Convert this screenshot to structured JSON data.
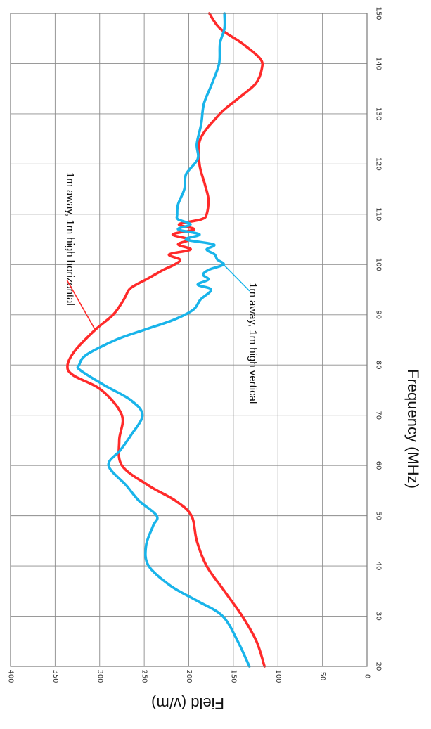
{
  "chart_data": {
    "type": "line",
    "xlabel": "Frequency (MHz)",
    "ylabel": "Field (v/m)",
    "xlim": [
      20,
      150
    ],
    "ylim": [
      0,
      400
    ],
    "x_ticks": [
      20,
      30,
      40,
      50,
      60,
      70,
      80,
      90,
      100,
      110,
      120,
      130,
      140,
      150
    ],
    "y_ticks": [
      0,
      50,
      100,
      150,
      200,
      250,
      300,
      350,
      400
    ],
    "grid": true,
    "rotation": "rotated 90 degrees clockwise",
    "series": [
      {
        "name": "1m away, 1m high horizontal",
        "color": "#ff2a2a",
        "points": [
          [
            20,
            115
          ],
          [
            25,
            124
          ],
          [
            30,
            140
          ],
          [
            35,
            160
          ],
          [
            40,
            180
          ],
          [
            45,
            191
          ],
          [
            50,
            197
          ],
          [
            53,
            215
          ],
          [
            56,
            245
          ],
          [
            60,
            275
          ],
          [
            65,
            278
          ],
          [
            70,
            275
          ],
          [
            75,
            298
          ],
          [
            78,
            330
          ],
          [
            80,
            336
          ],
          [
            83,
            327
          ],
          [
            87,
            305
          ],
          [
            90,
            285
          ],
          [
            93,
            273
          ],
          [
            95,
            267
          ],
          [
            96,
            259
          ],
          [
            97,
            248
          ],
          [
            98,
            238
          ],
          [
            99,
            228
          ],
          [
            100,
            216
          ],
          [
            101,
            210
          ],
          [
            102,
            222
          ],
          [
            103,
            198
          ],
          [
            104,
            212
          ],
          [
            105,
            200
          ],
          [
            106,
            218
          ],
          [
            107,
            194
          ],
          [
            108,
            211
          ],
          [
            109,
            186
          ],
          [
            110,
            180
          ],
          [
            113,
            178
          ],
          [
            116,
            182
          ],
          [
            120,
            188
          ],
          [
            125,
            187
          ],
          [
            130,
            165
          ],
          [
            133,
            145
          ],
          [
            136,
            125
          ],
          [
            139,
            118
          ],
          [
            141,
            120
          ],
          [
            144,
            140
          ],
          [
            147,
            165
          ],
          [
            150,
            177
          ]
        ]
      },
      {
        "name": "1m away, 1m high vertical",
        "color": "#19b4ea",
        "points": [
          [
            20,
            132
          ],
          [
            25,
            145
          ],
          [
            30,
            162
          ],
          [
            33,
            190
          ],
          [
            36,
            220
          ],
          [
            40,
            245
          ],
          [
            44,
            248
          ],
          [
            48,
            240
          ],
          [
            50,
            236
          ],
          [
            53,
            256
          ],
          [
            56,
            270
          ],
          [
            60,
            290
          ],
          [
            63,
            277
          ],
          [
            66,
            265
          ],
          [
            70,
            252
          ],
          [
            73,
            265
          ],
          [
            76,
            295
          ],
          [
            79,
            322
          ],
          [
            80,
            323
          ],
          [
            82,
            315
          ],
          [
            85,
            282
          ],
          [
            87,
            250
          ],
          [
            89,
            217
          ],
          [
            91,
            195
          ],
          [
            93,
            187
          ],
          [
            95,
            175
          ],
          [
            96,
            190
          ],
          [
            97,
            178
          ],
          [
            98,
            184
          ],
          [
            99,
            177
          ],
          [
            100,
            161
          ],
          [
            101,
            168
          ],
          [
            102,
            171
          ],
          [
            103,
            180
          ],
          [
            104,
            172
          ],
          [
            105,
            203
          ],
          [
            106,
            188
          ],
          [
            107,
            212
          ],
          [
            108,
            198
          ],
          [
            109,
            212
          ],
          [
            110,
            213
          ],
          [
            112,
            212
          ],
          [
            115,
            205
          ],
          [
            118,
            203
          ],
          [
            121,
            190
          ],
          [
            124,
            191
          ],
          [
            128,
            186
          ],
          [
            132,
            183
          ],
          [
            136,
            174
          ],
          [
            140,
            166
          ],
          [
            144,
            165
          ],
          [
            147,
            160
          ],
          [
            150,
            160
          ]
        ]
      }
    ],
    "annotations": [
      {
        "text": "1m away,  1m high horizontal",
        "series": "1m away, 1m high horizontal"
      },
      {
        "text": "1m away, 1m high vertical",
        "series": "1m away, 1m high vertical"
      }
    ]
  }
}
